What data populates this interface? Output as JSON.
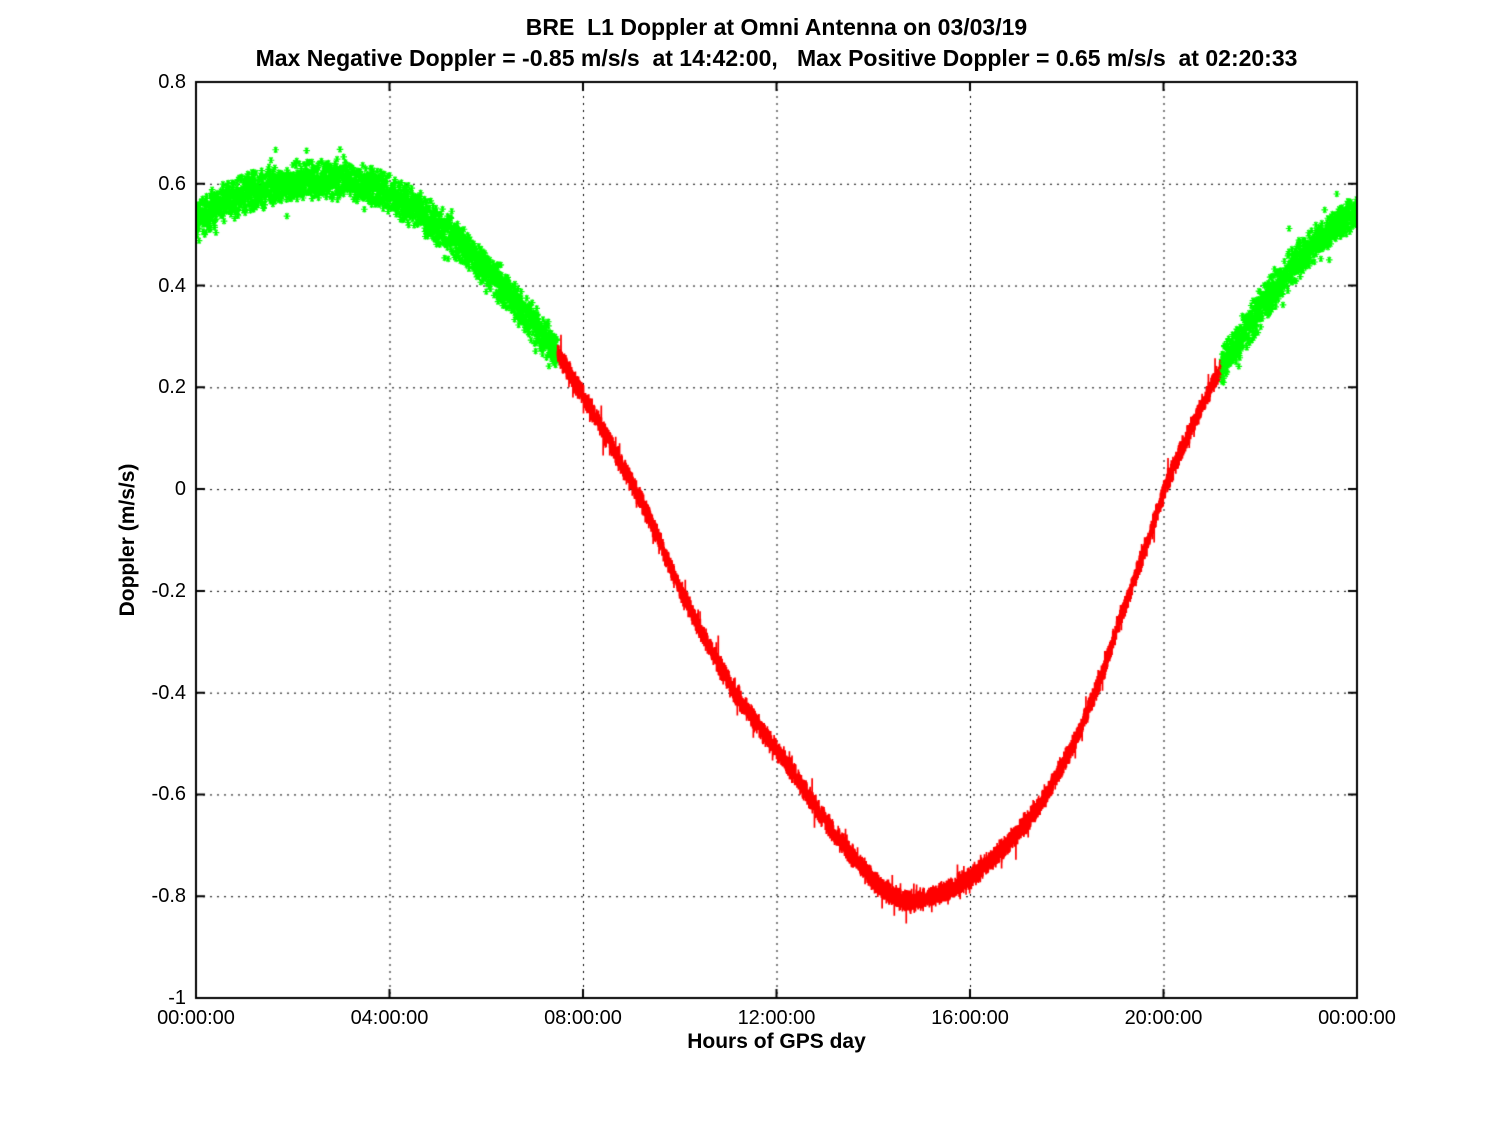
{
  "chart_data": {
    "type": "scatter",
    "title": "BRE  L1 Doppler at Omni Antenna on 03/03/19",
    "subtitle": "Max Negative Doppler = -0.85 m/s/s  at 14:42:00,   Max Positive Doppler = 0.65 m/s/s  at 02:20:33",
    "xlabel": "Hours of GPS day",
    "ylabel": "Doppler (m/s/s)",
    "x_tick_labels": [
      "00:00:00",
      "04:00:00",
      "08:00:00",
      "12:00:00",
      "16:00:00",
      "20:00:00",
      "00:00:00"
    ],
    "x_tick_hours": [
      0,
      4,
      8,
      12,
      16,
      20,
      24
    ],
    "y_tick_labels": [
      "0.8",
      "0.6",
      "0.4",
      "0.2",
      "0",
      "-0.2",
      "-0.4",
      "-0.6",
      "-0.8",
      "-1"
    ],
    "y_tick_values": [
      0.8,
      0.6,
      0.4,
      0.2,
      0,
      -0.2,
      -0.4,
      -0.6,
      -0.8,
      -1
    ],
    "xlim_hours": [
      0,
      24
    ],
    "ylim": [
      -1,
      0.8
    ],
    "grid_style": "dotted",
    "legend": "none",
    "colors": {
      "tracked": "#00ff00",
      "untracked": "#ff0000",
      "axis": "#000000",
      "grid": "#000000",
      "background": "#ffffff"
    },
    "annotations": {
      "max_negative": {
        "value": -0.85,
        "units": "m/s/s",
        "time": "14:42:00"
      },
      "max_positive": {
        "value": 0.65,
        "units": "m/s/s",
        "time": "02:20:33"
      }
    },
    "curve_control_points": [
      [
        0,
        0.53
      ],
      [
        0.5,
        0.557
      ],
      [
        1,
        0.578
      ],
      [
        1.5,
        0.593
      ],
      [
        2,
        0.603
      ],
      [
        2.4,
        0.608
      ],
      [
        2.9,
        0.608
      ],
      [
        3.4,
        0.6
      ],
      [
        3.9,
        0.583
      ],
      [
        4.4,
        0.558
      ],
      [
        4.9,
        0.525
      ],
      [
        5.4,
        0.487
      ],
      [
        5.9,
        0.443
      ],
      [
        6.4,
        0.392
      ],
      [
        6.9,
        0.333
      ],
      [
        7.47,
        0.268
      ],
      [
        7.9,
        0.2
      ],
      [
        8.3,
        0.135
      ],
      [
        8.7,
        0.065
      ],
      [
        9.08,
        0.0
      ],
      [
        9.5,
        -0.085
      ],
      [
        10,
        -0.195
      ],
      [
        10.5,
        -0.29
      ],
      [
        11.14,
        -0.4
      ],
      [
        11.6,
        -0.462
      ],
      [
        12.1,
        -0.525
      ],
      [
        12.6,
        -0.595
      ],
      [
        13.1,
        -0.663
      ],
      [
        13.6,
        -0.725
      ],
      [
        14,
        -0.768
      ],
      [
        14.35,
        -0.795
      ],
      [
        14.7,
        -0.81
      ],
      [
        15.2,
        -0.8
      ],
      [
        15.7,
        -0.78
      ],
      [
        16.2,
        -0.748
      ],
      [
        16.7,
        -0.705
      ],
      [
        17.2,
        -0.65
      ],
      [
        17.6,
        -0.595
      ],
      [
        18,
        -0.525
      ],
      [
        18.4,
        -0.445
      ],
      [
        18.8,
        -0.345
      ],
      [
        19.1,
        -0.255
      ],
      [
        19.4,
        -0.175
      ],
      [
        19.7,
        -0.095
      ],
      [
        20.03,
        0.0
      ],
      [
        20.6,
        0.125
      ],
      [
        21.21,
        0.24
      ],
      [
        21.7,
        0.31
      ],
      [
        22.2,
        0.38
      ],
      [
        22.7,
        0.44
      ],
      [
        23.2,
        0.487
      ],
      [
        23.6,
        0.518
      ],
      [
        24,
        0.545
      ]
    ],
    "segments": [
      {
        "name": "tracked-at-omni-morning",
        "color_key": "tracked",
        "marker": "asterisk",
        "t_start": 0,
        "t_end": 7.47
      },
      {
        "name": "not-tracked-midday",
        "color_key": "untracked",
        "marker": "line",
        "t_start": 7.47,
        "t_end": 21.21
      },
      {
        "name": "tracked-at-omni-evening",
        "color_key": "tracked",
        "marker": "asterisk",
        "t_start": 21.21,
        "t_end": 24
      }
    ],
    "noise": {
      "line_amp": 0.026,
      "marker_amp": 0.042,
      "spike_prob": 0.05,
      "spike_max_extra": 1.2,
      "seed": 42
    }
  }
}
